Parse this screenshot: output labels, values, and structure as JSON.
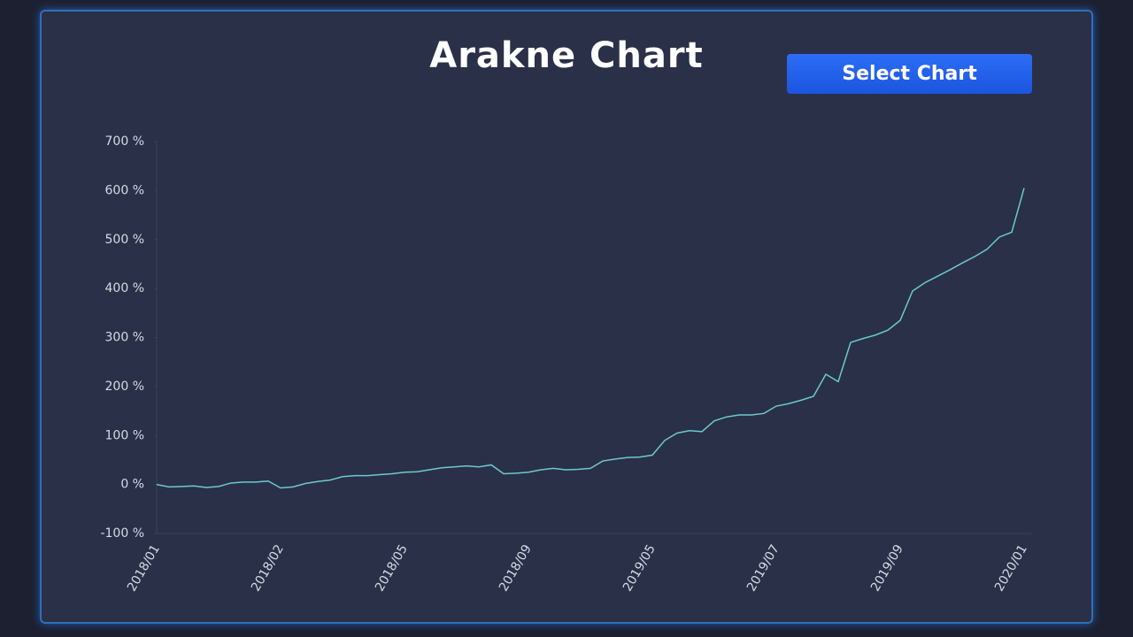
{
  "title": "Arakne Chart",
  "button": "Select Chart",
  "chart_data": {
    "type": "line",
    "categories": [
      "2018/01",
      null,
      null,
      null,
      null,
      null,
      null,
      null,
      null,
      null,
      "2018/02",
      null,
      null,
      null,
      null,
      null,
      null,
      null,
      null,
      null,
      "2018/05",
      null,
      null,
      null,
      null,
      null,
      null,
      null,
      null,
      null,
      "2018/09",
      null,
      null,
      null,
      null,
      null,
      null,
      null,
      null,
      null,
      "2019/05",
      null,
      null,
      null,
      null,
      null,
      null,
      null,
      null,
      null,
      "2019/07",
      null,
      null,
      null,
      null,
      null,
      null,
      null,
      null,
      null,
      "2019/09",
      null,
      null,
      null,
      null,
      null,
      null,
      null,
      null,
      null,
      "2020/01"
    ],
    "values": [
      0,
      -5,
      -4,
      -3,
      -6,
      -4,
      3,
      5,
      5,
      7,
      -7,
      -5,
      2,
      6,
      9,
      16,
      18,
      18,
      20,
      22,
      25,
      26,
      30,
      34,
      36,
      38,
      36,
      40,
      22,
      23,
      25,
      30,
      33,
      30,
      31,
      33,
      48,
      52,
      55,
      56,
      60,
      90,
      105,
      110,
      108,
      130,
      138,
      142,
      142,
      145,
      160,
      165,
      172,
      180,
      225,
      210,
      290,
      298,
      305,
      315,
      335,
      395,
      412,
      425,
      438,
      452,
      465,
      480,
      505,
      515,
      605
    ],
    "color": "#6ccaca",
    "ylim": [
      -100,
      700
    ],
    "yticks": [
      {
        "value": -100,
        "label": "-100 %"
      },
      {
        "value": 0,
        "label": "0 %"
      },
      {
        "value": 100,
        "label": "100 %"
      },
      {
        "value": 200,
        "label": "200 %"
      },
      {
        "value": 300,
        "label": "300 %"
      },
      {
        "value": 400,
        "label": "400 %"
      },
      {
        "value": 500,
        "label": "500 %"
      },
      {
        "value": 600,
        "label": "600 %"
      },
      {
        "value": 700,
        "label": "700 %"
      }
    ]
  }
}
